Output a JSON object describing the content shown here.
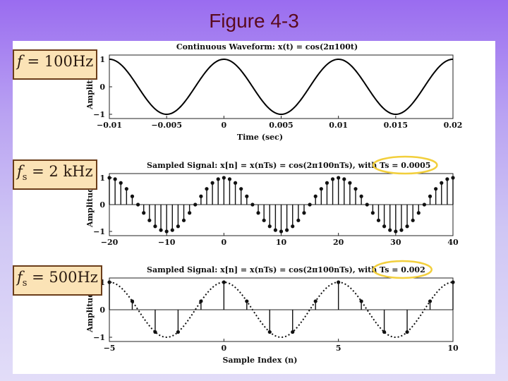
{
  "slide": {
    "title": "Figure 4-3"
  },
  "labels": [
    {
      "sym": "f",
      "sub": "",
      "text": "= 100Hz"
    },
    {
      "sym": "f",
      "sub": "s",
      "text": "= 2 kHz"
    },
    {
      "sym": "f",
      "sub": "s",
      "text": "= 500Hz"
    }
  ],
  "colors": {
    "highlight": "#f2cf3c",
    "trace": "#000000"
  },
  "chart_data": [
    {
      "type": "line",
      "title": "Continuous Waveform: x(t) = cos(2π100t)",
      "xlabel": "Time (sec)",
      "ylabel": "Amplitude",
      "xlim": [
        -0.01,
        0.02
      ],
      "ylim": [
        -1,
        1
      ],
      "xticks": [
        -0.01,
        -0.005,
        0,
        0.005,
        0.01,
        0.015,
        0.02
      ],
      "xtick_labels": [
        "−0.01",
        "−0.005",
        "0",
        "0.005",
        "0.01",
        "0.015",
        "0.02"
      ],
      "yticks": [
        -1,
        0,
        1
      ],
      "ytick_labels": [
        "−1",
        "0",
        "1"
      ],
      "signal": {
        "frequency_hz": 100,
        "function": "cos"
      }
    },
    {
      "type": "stem",
      "title_prefix": "Sampled Signal: x[n] = x(nTs) = cos(2π100nTs), with ",
      "title_highlight": "Ts = 0.0005",
      "xlabel": "",
      "ylabel": "Amplitude",
      "xlim": [
        -20,
        40
      ],
      "ylim": [
        -1,
        1
      ],
      "xticks": [
        -20,
        -10,
        0,
        10,
        20,
        30,
        40
      ],
      "xtick_labels": [
        "−20",
        "−10",
        "0",
        "10",
        "20",
        "30",
        "40"
      ],
      "yticks": [
        -1,
        0,
        1
      ],
      "ytick_labels": [
        "−1",
        "0",
        "1"
      ],
      "n_range": [
        -20,
        40
      ],
      "signal": {
        "omega_hat_over_pi": 0.1,
        "function": "cos"
      }
    },
    {
      "type": "stem",
      "title_prefix": "Sampled Signal: x[n] = x(nTs) = cos(2π100nTs), with ",
      "title_highlight": "Ts = 0.002",
      "xlabel": "Sample Index (n)",
      "ylabel": "Amplitude",
      "xlim": [
        -5,
        10
      ],
      "ylim": [
        -1,
        1
      ],
      "xticks": [
        -5,
        0,
        5,
        10
      ],
      "xtick_labels": [
        "−5",
        "0",
        "5",
        "10"
      ],
      "yticks": [
        -1,
        0,
        1
      ],
      "ytick_labels": [
        "−1",
        "0",
        "1"
      ],
      "n_range": [
        -5,
        10
      ],
      "signal": {
        "omega_hat_over_pi": 0.4,
        "function": "cos"
      },
      "envelope": "dashed"
    }
  ]
}
